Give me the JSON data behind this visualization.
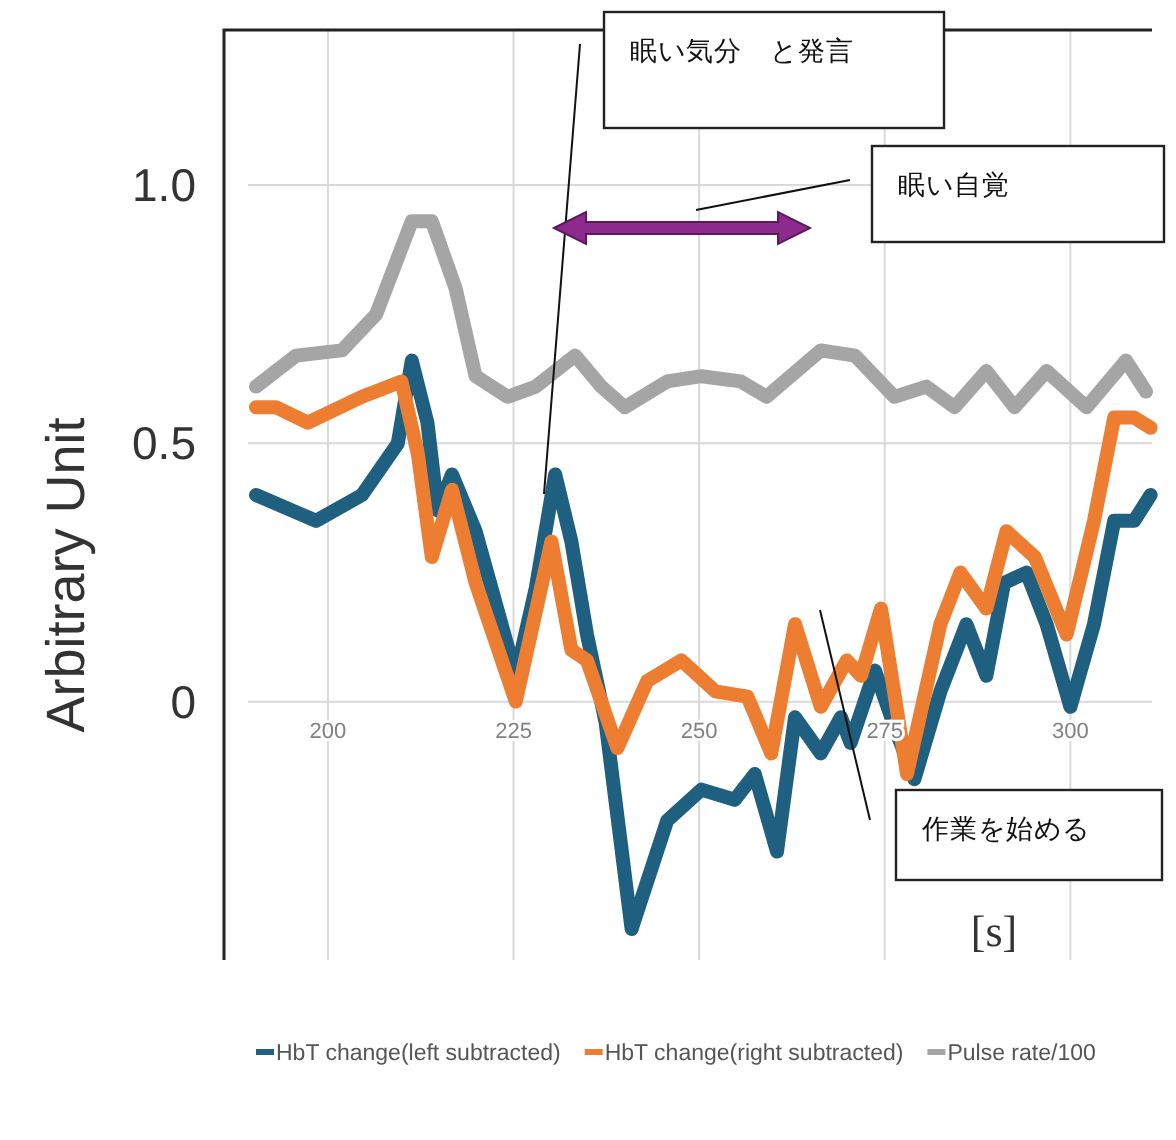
{
  "chart_data": {
    "type": "line",
    "ylabel": "Arbitrary Unit",
    "xlabel": "[s]",
    "xlim": [
      186,
      311
    ],
    "ylim": [
      -0.5,
      1.3
    ],
    "xticks": [
      200,
      225,
      250,
      275,
      300
    ],
    "yticks": [
      0,
      0.5,
      {
        "value": 1,
        "label": "1.0"
      }
    ],
    "grid": true,
    "legend": "bottom",
    "line_style": "solid",
    "series": [
      {
        "name": "HbT change(left subtracted)",
        "color": "#1f5f80",
        "x": [
          190.3,
          198.4,
          204.6,
          209.4,
          211.3,
          213.4,
          214.8,
          216.7,
          219.9,
          225.3,
          228,
          230.6,
          232.8,
          234.9,
          237.4,
          240.9,
          245.7,
          250.3,
          254.8,
          257.5,
          260.5,
          262.9,
          266.4,
          269.1,
          270.4,
          273.7,
          276.6,
          279,
          282.5,
          286,
          288.7,
          291.1,
          294.1,
          296.8,
          300,
          303.2,
          305.9,
          308.6,
          310.8
        ],
        "values": [
          0.4,
          0.35,
          0.4,
          0.5,
          0.66,
          0.54,
          0.37,
          0.44,
          0.33,
          0.05,
          0.22,
          0.44,
          0.31,
          0.13,
          -0.04,
          -0.44,
          -0.23,
          -0.17,
          -0.19,
          -0.14,
          -0.29,
          -0.03,
          -0.1,
          -0.03,
          -0.08,
          0.06,
          -0.06,
          -0.15,
          0.02,
          0.15,
          0.05,
          0.23,
          0.25,
          0.15,
          -0.01,
          0.15,
          0.35,
          0.35,
          0.4
        ]
      },
      {
        "name": "HbT change(right subtracted)",
        "color": "#ed7d31",
        "x": [
          190.3,
          193,
          197.3,
          204.6,
          209.9,
          212.1,
          214,
          216.7,
          219.9,
          225.3,
          230.1,
          232.8,
          234.9,
          239,
          243,
          247.6,
          252.2,
          256.5,
          259.7,
          262.9,
          266.4,
          269.9,
          271.8,
          274.5,
          278,
          282.5,
          285.2,
          288.7,
          291.4,
          295.2,
          299.5,
          303.2,
          305.9,
          308.6,
          310.8
        ],
        "values": [
          0.57,
          0.57,
          0.54,
          0.59,
          0.62,
          0.48,
          0.28,
          0.41,
          0.23,
          0.0,
          0.31,
          0.1,
          0.08,
          -0.09,
          0.04,
          0.08,
          0.02,
          0.01,
          -0.1,
          0.15,
          -0.01,
          0.08,
          0.05,
          0.18,
          -0.14,
          0.15,
          0.25,
          0.18,
          0.33,
          0.28,
          0.13,
          0.35,
          0.55,
          0.55,
          0.53
        ]
      },
      {
        "name": "Pulse rate/100",
        "color": "#a5a5a5",
        "x": [
          190.3,
          195.7,
          201.9,
          206.5,
          211.3,
          214,
          217.2,
          219.9,
          224.2,
          228,
          233.3,
          236.8,
          240,
          245.7,
          250.3,
          255.6,
          259.1,
          266.4,
          271,
          276.3,
          280.6,
          284.4,
          288.7,
          292.5,
          296.8,
          302.2,
          307.5,
          310.2
        ],
        "values": [
          0.61,
          0.67,
          0.68,
          0.75,
          0.93,
          0.93,
          0.8,
          0.63,
          0.59,
          0.61,
          0.67,
          0.61,
          0.57,
          0.62,
          0.63,
          0.62,
          0.59,
          0.68,
          0.67,
          0.59,
          0.61,
          0.57,
          0.64,
          0.57,
          0.64,
          0.57,
          0.66,
          0.6
        ]
      }
    ],
    "annotations": [
      "眠い気分　と発言",
      "眠い自覚",
      "作業を始める"
    ]
  }
}
